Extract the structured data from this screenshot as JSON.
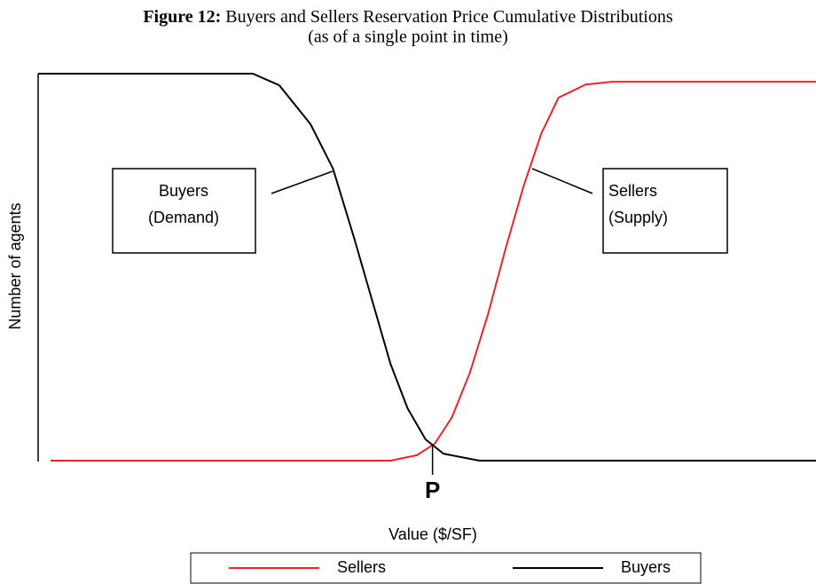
{
  "chart_data": {
    "type": "line",
    "figure_label": "Figure 12:",
    "title": "Buyers and Sellers Reservation Price Cumulative Distributions",
    "subtitle": "(as of a single point in time)",
    "y_label": "Number of agents",
    "x_label": "Value ($/SF)",
    "xlim": [
      0,
      100
    ],
    "ylim": [
      0,
      100
    ],
    "series": [
      {
        "name": "Sellers",
        "color": "#e8262a",
        "x": [
          1.6,
          45.3,
          48.7,
          51.0,
          53.2,
          55.5,
          57.8,
          60.1,
          62.4,
          64.7,
          66.9,
          70.4,
          73.8,
          100
        ],
        "values": [
          0,
          0,
          1.4,
          4.4,
          11.2,
          22.7,
          37.6,
          54.8,
          70.9,
          84.6,
          93.8,
          97.2,
          97.9,
          97.9
        ]
      },
      {
        "name": "Buyers",
        "color": "#000000",
        "x": [
          0,
          27.6,
          31.0,
          35.0,
          37.9,
          40.7,
          43.0,
          45.3,
          47.5,
          49.8,
          52.1,
          56.7,
          100
        ],
        "values": [
          100,
          100,
          97,
          87,
          75.5,
          57,
          41,
          25,
          13.5,
          5.5,
          1.8,
          0,
          0
        ]
      }
    ],
    "annotations": [
      {
        "lines": [
          "Buyers",
          "(Demand)"
        ]
      },
      {
        "lines": [
          "Sellers",
          "(Supply)"
        ]
      }
    ],
    "equilibrium": {
      "label": "P",
      "x": 50.7
    }
  }
}
